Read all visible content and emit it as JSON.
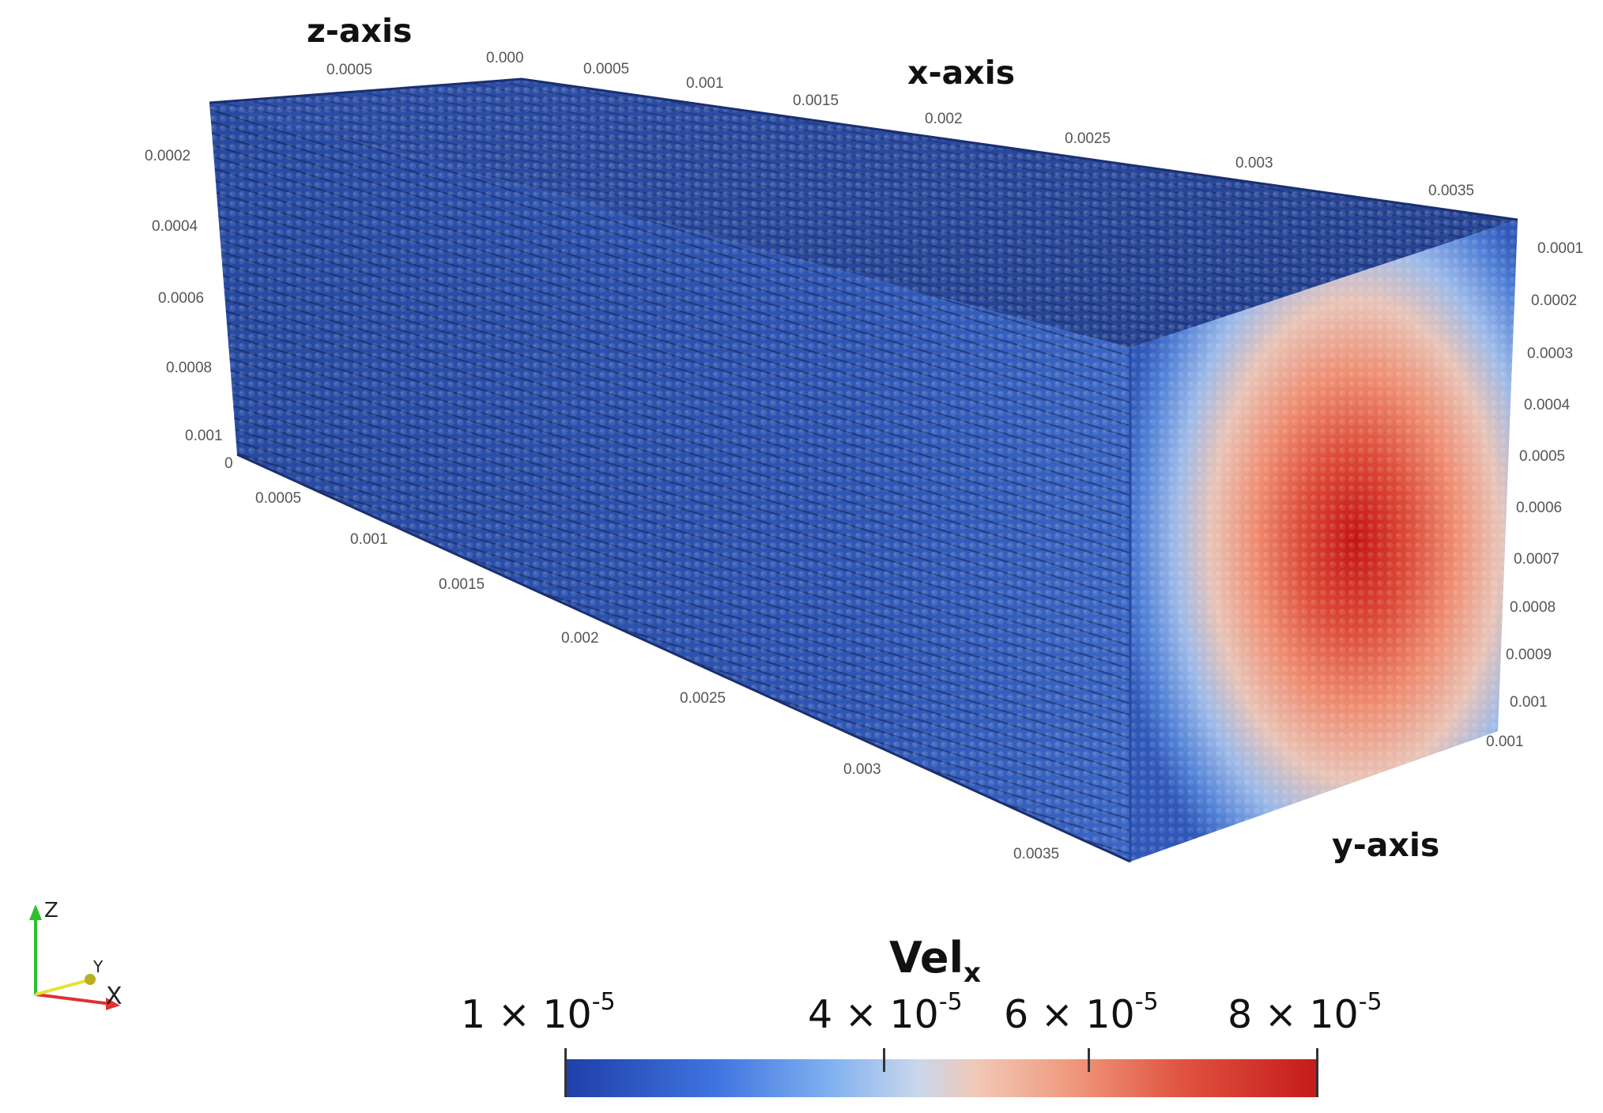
{
  "axes": {
    "z_title": "z-axis",
    "x_title": "x-axis",
    "y_title": "y-axis"
  },
  "ticks": {
    "top_z": [
      "0.0005",
      "0.000"
    ],
    "top_x": [
      "0.0005",
      "0.001",
      "0.0015",
      "0.002",
      "0.0025",
      "0.003",
      "0.0035"
    ],
    "left_z": [
      "0.0002",
      "0.0004",
      "0.0006",
      "0.0008",
      "0.001",
      "0"
    ],
    "bottom_x": [
      "0.0005",
      "0.001",
      "0.0015",
      "0.002",
      "0.0025",
      "0.003",
      "0.0035"
    ],
    "right_y": [
      "0.0001",
      "0.0002",
      "0.0003",
      "0.0004",
      "0.0005",
      "0.0006",
      "0.0007",
      "0.0008",
      "0.0009",
      "0.001",
      "0.001"
    ]
  },
  "triad": {
    "z": "Z",
    "y": "Y",
    "x": "X"
  },
  "colorbar": {
    "title_main": "Vel",
    "title_sub": "x",
    "labels": [
      {
        "mantissa": "1 × 10",
        "exp": "-5"
      },
      {
        "mantissa": "4 × 10",
        "exp": "-5"
      },
      {
        "mantissa": "6 × 10",
        "exp": "-5"
      },
      {
        "mantissa": "8 × 10",
        "exp": "-5"
      }
    ],
    "colors": [
      "#1f3ea8",
      "#7fb0f0",
      "#f2c7b4",
      "#c51a1a"
    ]
  }
}
